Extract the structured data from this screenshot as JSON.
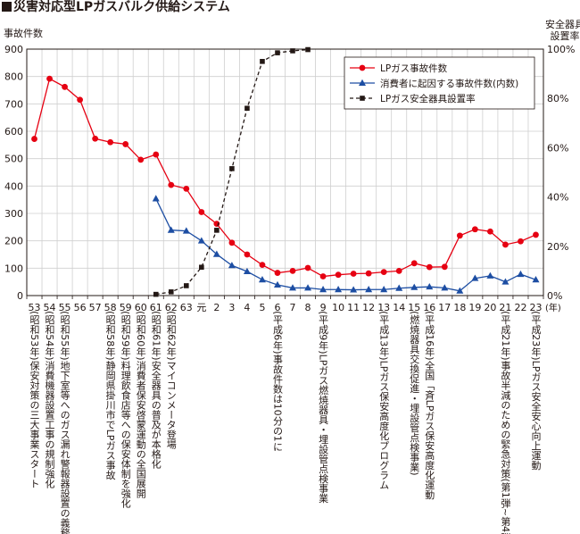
{
  "header": {
    "title": "災害対応型LPガスバルク供給システム"
  },
  "chart_data": {
    "type": "line",
    "title": "災害対応型LPガスバルク供給システム",
    "ylabel_left": "事故件数",
    "ylabel_right": "安全器具設置率",
    "ylim_left": [
      0,
      900
    ],
    "ylim_right": [
      0,
      100
    ],
    "yticks_left": [
      "0",
      "100",
      "200",
      "300",
      "400",
      "500",
      "600",
      "700",
      "800",
      "900"
    ],
    "yticks_right": [
      "0%",
      "20%",
      "40%",
      "60%",
      "80%",
      "100%"
    ],
    "x_unit_label": "(年)",
    "categories": [
      "53",
      "54",
      "55",
      "56",
      "57",
      "58",
      "59",
      "60",
      "61",
      "62",
      "63",
      "元",
      "2",
      "3",
      "4",
      "5",
      "6",
      "7",
      "8",
      "9",
      "10",
      "11",
      "12",
      "13",
      "14",
      "15",
      "16",
      "17",
      "18",
      "19",
      "20",
      "21",
      "22",
      "23"
    ],
    "grid": true,
    "legend_position": "top-right",
    "series": [
      {
        "name": "LPガス事故件数",
        "color": "#e60012",
        "marker": "circle",
        "axis": "left",
        "values": [
          572,
          792,
          762,
          715,
          573,
          560,
          553,
          496,
          515,
          404,
          390,
          305,
          262,
          193,
          150,
          112,
          83,
          90,
          101,
          70,
          76,
          80,
          81,
          86,
          90,
          118,
          104,
          105,
          219,
          242,
          234,
          186,
          198,
          222
        ]
      },
      {
        "name": "消費者に起因する事故件数(内数)",
        "color": "#1d4ea3",
        "marker": "triangle",
        "axis": "left",
        "values": [
          null,
          null,
          null,
          null,
          null,
          null,
          null,
          null,
          354,
          239,
          236,
          200,
          151,
          110,
          88,
          58,
          39,
          28,
          28,
          22,
          22,
          21,
          22,
          22,
          27,
          30,
          32,
          28,
          17,
          63,
          72,
          50,
          78,
          58
        ]
      },
      {
        "name": "LPガス安全器具設置率",
        "color": "#231815",
        "marker": "square",
        "dash": true,
        "axis": "right",
        "values": [
          null,
          null,
          null,
          null,
          null,
          null,
          null,
          null,
          0.5,
          1.5,
          4,
          11.5,
          26.5,
          51.5,
          76,
          95,
          98.5,
          99.3,
          99.8,
          null,
          null,
          null,
          null,
          null,
          null,
          null,
          null,
          null,
          null,
          null,
          null,
          null,
          null,
          null
        ]
      }
    ],
    "annotations": [
      {
        "at": "53",
        "text": "(昭和53年)保安対策の三大事業スタート"
      },
      {
        "at": "54",
        "text": "(昭和54年)消費機器設置工事の規制強化"
      },
      {
        "at": "55",
        "text": "(昭和55年)地下室等へのガス漏れ警報器設置の義務化"
      },
      {
        "at": "58",
        "text": "(昭和58年)静岡県掛川市でLPガス事故"
      },
      {
        "at": "59",
        "text": "(昭和59年)料理飲食店等への保安体制を強化"
      },
      {
        "at": "60",
        "text": "(昭和60年)消費者保安啓蒙運動の全国展開"
      },
      {
        "at": "61",
        "text": "(昭和61年)安全器具の普及が本格化"
      },
      {
        "at": "62",
        "text": "(昭和62年)マイコンメータ登場"
      },
      {
        "at": "6",
        "text": "(平成6年)事故件数は10分の1に"
      },
      {
        "at": "9",
        "text": "(平成9年)LPガス燃焼器具・埋設管点検事業"
      },
      {
        "at": "13",
        "text": "(平成13年)LPガス保安高度化プログラム"
      },
      {
        "at": "15",
        "text": "(燃焼器具交換促進・埋設管点検事業)"
      },
      {
        "at": "16",
        "text": "(平成16年)全国「斉LPガス保安高度化運動"
      },
      {
        "at": "21",
        "text": "(平成21年)事故半減のための緊急対策(第1弾~第4弾)"
      },
      {
        "at": "23",
        "text": "(平成23年)LPガス安全安心向上運動"
      }
    ]
  }
}
